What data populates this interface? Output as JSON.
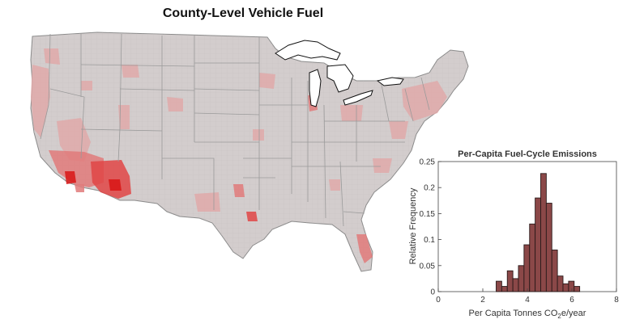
{
  "map": {
    "title": "County-Level Vehicle Fuel",
    "colors": {
      "land": "#d3cdcd",
      "light": "#dfa9a9",
      "medium": "#e07a7a",
      "strong": "#e04545",
      "max": "#d91515",
      "state_border": "#9a9a9a",
      "lakes": "#ffffff"
    }
  },
  "chart_data": {
    "type": "bar",
    "title": "Per-Capita Fuel-Cycle Emissions",
    "xlabel": "Per Capita Tonnes CO2e/year",
    "xlabel_main": "Per Capita Tonnes CO",
    "xlabel_sub": "2",
    "xlabel_tail": "e/year",
    "ylabel": "Relative Frequency",
    "xlim": [
      0,
      8
    ],
    "ylim": [
      0,
      0.25
    ],
    "xticks": [
      "0",
      "2",
      "4",
      "6",
      "8"
    ],
    "yticks": [
      "0",
      "0.05",
      "0.1",
      "0.15",
      "0.2",
      "0.25"
    ],
    "bin_width": 0.25,
    "bins": [
      {
        "x0": 2.6,
        "value": 0.02
      },
      {
        "x0": 2.85,
        "value": 0.01
      },
      {
        "x0": 3.1,
        "value": 0.04
      },
      {
        "x0": 3.35,
        "value": 0.025
      },
      {
        "x0": 3.6,
        "value": 0.05
      },
      {
        "x0": 3.85,
        "value": 0.09
      },
      {
        "x0": 4.1,
        "value": 0.13
      },
      {
        "x0": 4.35,
        "value": 0.18
      },
      {
        "x0": 4.6,
        "value": 0.227
      },
      {
        "x0": 4.85,
        "value": 0.17
      },
      {
        "x0": 5.1,
        "value": 0.08
      },
      {
        "x0": 5.35,
        "value": 0.03
      },
      {
        "x0": 5.6,
        "value": 0.015
      },
      {
        "x0": 5.85,
        "value": 0.02
      },
      {
        "x0": 6.1,
        "value": 0.01
      }
    ],
    "bar_color": "#8b4848",
    "bar_edge": "#2a1a1a"
  }
}
